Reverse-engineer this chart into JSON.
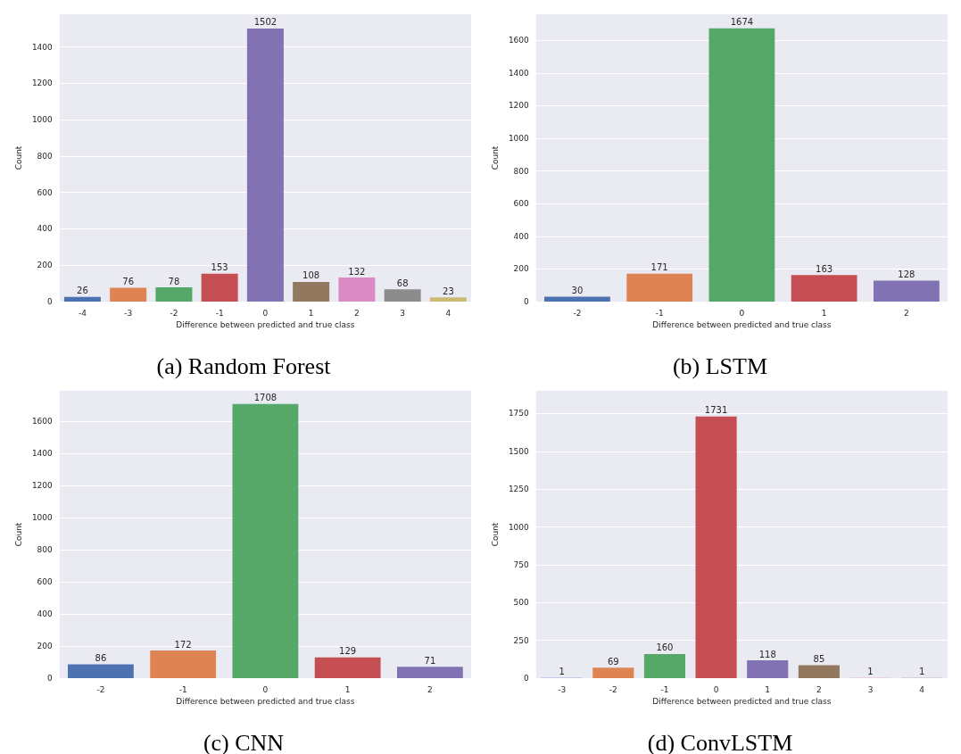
{
  "chart_data": [
    {
      "type": "bar",
      "title": "(a) Random Forest",
      "xlabel": "Difference between predicted and true class",
      "ylabel": "Count",
      "categories": [
        "-4",
        "-3",
        "-2",
        "-1",
        "0",
        "1",
        "2",
        "3",
        "4"
      ],
      "values": [
        26,
        76,
        78,
        153,
        1502,
        108,
        132,
        68,
        23
      ],
      "colors": [
        "#4c72b0",
        "#dd8452",
        "#55a868",
        "#c44e52",
        "#8172b3",
        "#937860",
        "#da8bc3",
        "#8c8c8c",
        "#ccb974"
      ],
      "ylim": [
        0,
        1580
      ],
      "yticks": [
        0,
        200,
        400,
        600,
        800,
        1000,
        1200,
        1400
      ],
      "grid": "y",
      "data_labels": true
    },
    {
      "type": "bar",
      "title": "(b) LSTM",
      "xlabel": "Difference between predicted and true class",
      "ylabel": "Count",
      "categories": [
        "-2",
        "-1",
        "0",
        "1",
        "2"
      ],
      "values": [
        30,
        171,
        1674,
        163,
        128
      ],
      "colors": [
        "#4c72b0",
        "#dd8452",
        "#55a868",
        "#c44e52",
        "#8172b3"
      ],
      "ylim": [
        0,
        1760
      ],
      "yticks": [
        0,
        200,
        400,
        600,
        800,
        1000,
        1200,
        1400,
        1600
      ],
      "grid": "y",
      "data_labels": true
    },
    {
      "type": "bar",
      "title": "(c) CNN",
      "xlabel": "Difference between predicted and true class",
      "ylabel": "Count",
      "categories": [
        "-2",
        "-1",
        "0",
        "1",
        "2"
      ],
      "values": [
        86,
        172,
        1708,
        129,
        71
      ],
      "colors": [
        "#4c72b0",
        "#dd8452",
        "#55a868",
        "#c44e52",
        "#8172b3"
      ],
      "ylim": [
        0,
        1790
      ],
      "yticks": [
        0,
        200,
        400,
        600,
        800,
        1000,
        1200,
        1400,
        1600
      ],
      "grid": "y",
      "data_labels": true
    },
    {
      "type": "bar",
      "title": "(d) ConvLSTM",
      "xlabel": "Difference between predicted and true class",
      "ylabel": "Count",
      "categories": [
        "-3",
        "-2",
        "-1",
        "0",
        "1",
        "2",
        "3",
        "4"
      ],
      "values": [
        1,
        69,
        160,
        1731,
        118,
        85,
        1,
        1
      ],
      "colors": [
        "#4c72b0",
        "#dd8452",
        "#55a868",
        "#c44e52",
        "#8172b3",
        "#937860",
        "#da8bc3",
        "#8c8c8c"
      ],
      "ylim": [
        0,
        1900
      ],
      "yticks": [
        0,
        250,
        500,
        750,
        1000,
        1250,
        1500,
        1750
      ],
      "grid": "y",
      "data_labels": true
    }
  ]
}
